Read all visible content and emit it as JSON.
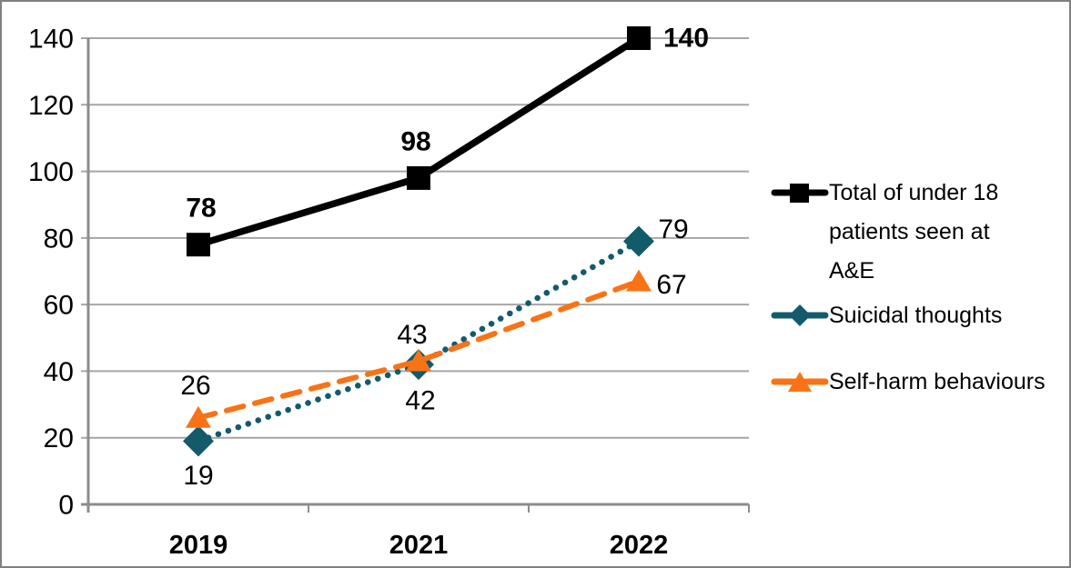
{
  "chart_data": {
    "type": "line",
    "categories": [
      "2019",
      "2021",
      "2022"
    ],
    "series": [
      {
        "name": "Total of under 18 patients seen at A&E",
        "values": [
          78,
          98,
          140
        ],
        "color": "#000000",
        "marker": "square",
        "line_style": "solid",
        "data_label_bold": true
      },
      {
        "name": "Suicidal thoughts",
        "values": [
          19,
          42,
          79
        ],
        "color": "#135B6B",
        "marker": "diamond",
        "line_style": "dotted",
        "data_label_bold": false
      },
      {
        "name": "Self-harm behaviours",
        "values": [
          26,
          43,
          67
        ],
        "color": "#F97316",
        "marker": "triangle",
        "line_style": "dashed",
        "data_label_bold": false
      }
    ],
    "title": "",
    "xlabel": "",
    "ylabel": "",
    "ylim": [
      0,
      140
    ],
    "yticks": [
      0,
      20,
      40,
      60,
      80,
      100,
      120,
      140
    ],
    "grid": true,
    "data_labels": true,
    "legend_position": "right",
    "gridline_color": "#A6A6A6",
    "axis_color": "#8C8C8C",
    "text_color": "#000000",
    "border_color": "#7F7F7F"
  }
}
